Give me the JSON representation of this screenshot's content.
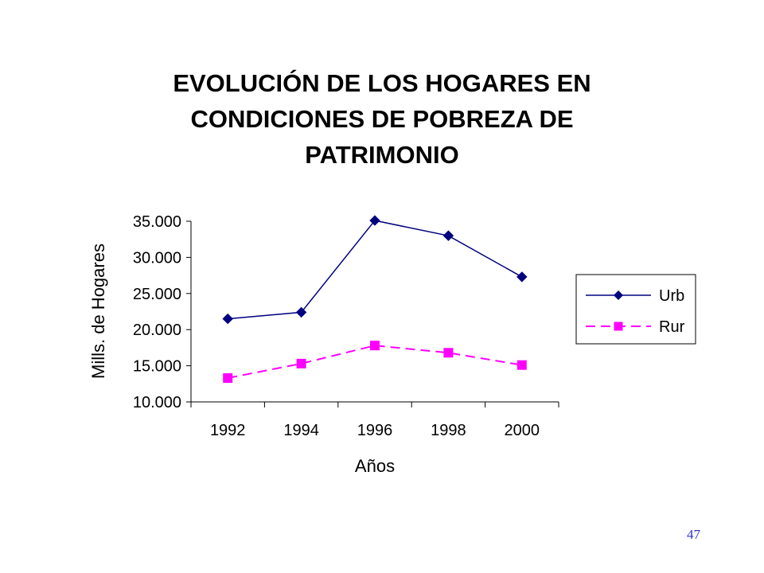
{
  "slide": {
    "title_lines": [
      "EVOLUCIÓN DE LOS HOGARES EN",
      "CONDICIONES DE POBREZA DE",
      "PATRIMONIO"
    ],
    "page_number": "47"
  },
  "chart_data": {
    "type": "line",
    "title": "EVOLUCIÓN DE LOS HOGARES EN CONDICIONES DE POBREZA DE PATRIMONIO",
    "categories": [
      "1992",
      "1994",
      "1996",
      "1998",
      "2000"
    ],
    "xlabel": "Años",
    "ylabel": "Mills. de Hogares",
    "ylim": [
      10000,
      35000
    ],
    "y_ticks": [
      10000,
      15000,
      20000,
      25000,
      30000,
      35000
    ],
    "y_tick_labels": [
      "10.000",
      "15.000",
      "20.000",
      "25.000",
      "30.000",
      "35.000"
    ],
    "grid": false,
    "legend_position": "right",
    "series": [
      {
        "name": "Urb",
        "values": [
          21500,
          22400,
          35100,
          33000,
          27300
        ],
        "color": "#000080",
        "marker": "diamond",
        "line_style": "solid"
      },
      {
        "name": "Rur",
        "values": [
          13300,
          15300,
          17800,
          16800,
          15100
        ],
        "color": "#ff00ff",
        "marker": "square",
        "line_style": "dashed"
      }
    ]
  }
}
